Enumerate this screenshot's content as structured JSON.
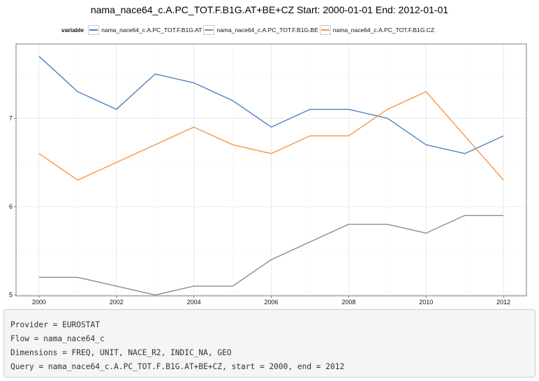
{
  "chart_data": {
    "type": "line",
    "title": "nama_nace64_c.A.PC_TOT.F.B1G.AT+BE+CZ Start: 2000-01-01 End: 2012-01-01",
    "xlabel": "",
    "ylabel": "",
    "legend_title": "variable",
    "legend_position": "top",
    "grid": true,
    "xlim": [
      2000,
      2012
    ],
    "ylim": [
      4.99,
      7.84
    ],
    "x_ticks": [
      "2000",
      "2002",
      "2004",
      "2006",
      "2008",
      "2010",
      "2012"
    ],
    "y_ticks": [
      "5",
      "6",
      "7"
    ],
    "x": [
      2000,
      2001,
      2002,
      2003,
      2004,
      2005,
      2006,
      2007,
      2008,
      2009,
      2010,
      2011,
      2012
    ],
    "series": [
      {
        "name": "nama_nace64_c.A.PC_TOT.F.B1G.AT",
        "color": "#4f81bd",
        "values": [
          7.7,
          7.3,
          7.1,
          7.5,
          7.4,
          7.2,
          6.9,
          7.1,
          7.1,
          7.0,
          6.7,
          6.6,
          6.8
        ]
      },
      {
        "name": "nama_nace64_c.A.PC_TOT.F.B1G.BE",
        "color": "#948a7e",
        "values": [
          5.2,
          5.2,
          5.1,
          5.0,
          5.1,
          5.1,
          5.4,
          5.6,
          5.8,
          5.8,
          5.7,
          5.9,
          5.9
        ]
      },
      {
        "name": "nama_nace64_c.A.PC_TOT.F.B1G.CZ",
        "color": "#f79646",
        "values": [
          6.6,
          6.3,
          6.5,
          6.7,
          6.9,
          6.7,
          6.6,
          6.8,
          6.8,
          7.1,
          7.3,
          6.8,
          6.3
        ]
      }
    ]
  },
  "code_lines": [
    "Provider = EUROSTAT",
    "Flow = nama_nace64_c",
    "Dimensions = FREQ, UNIT, NACE_R2, INDIC_NA, GEO",
    "Query = nama_nace64_c.A.PC_TOT.F.B1G.AT+BE+CZ, start = 2000, end = 2012"
  ]
}
